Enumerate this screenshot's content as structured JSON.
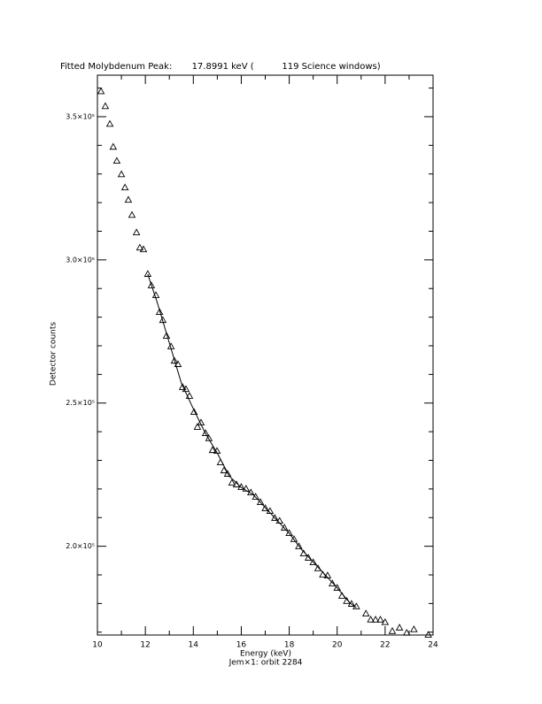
{
  "chart_data": {
    "type": "scatter",
    "title": "Fitted Molybdenum Peak:       17.8991 keV (          119 Science windows)",
    "x_label": "Energy (keV)",
    "subtitle": "Jem×1: orbit 2284",
    "y_label": "Detector counts",
    "marker": "triangle",
    "color": "#000000",
    "xlim": [
      10,
      24
    ],
    "xticks": [
      10,
      12,
      14,
      16,
      18,
      20,
      22,
      24
    ],
    "xticks_minor": [
      11,
      13,
      15,
      17,
      19,
      21,
      23
    ],
    "ylim": [
      169000,
      364500
    ],
    "yticks": [
      {
        "value": 200000,
        "label": "2.0×10⁵"
      },
      {
        "value": 250000,
        "label": "2.5×10⁵"
      },
      {
        "value": 300000,
        "label": "3.0×10⁵"
      },
      {
        "value": 350000,
        "label": "3.5×10⁵"
      }
    ],
    "yticks_minor": [
      170000,
      180000,
      190000,
      210000,
      220000,
      230000,
      240000,
      260000,
      270000,
      280000,
      290000,
      310000,
      320000,
      330000,
      340000,
      360000
    ],
    "x": [
      10.15,
      10.33,
      10.52,
      10.66,
      10.81,
      11.0,
      11.15,
      11.29,
      11.44,
      11.63,
      11.77,
      11.92,
      12.1,
      12.25,
      12.44,
      12.59,
      12.73,
      12.88,
      13.07,
      13.21,
      13.36,
      13.55,
      13.69,
      13.84,
      14.03,
      14.17,
      14.32,
      14.51,
      14.65,
      14.8,
      14.99,
      15.13,
      15.28,
      15.43,
      15.61,
      15.8,
      16.0,
      16.2,
      16.4,
      16.6,
      16.8,
      17.0,
      17.2,
      17.4,
      17.6,
      17.8,
      18.0,
      18.2,
      18.4,
      18.6,
      18.8,
      19.0,
      19.2,
      19.4,
      19.6,
      19.8,
      20.0,
      20.2,
      20.4,
      20.6,
      20.8,
      21.2,
      21.4,
      21.6,
      21.8,
      22.0,
      22.3,
      22.6,
      22.9,
      23.2,
      23.8
    ],
    "values": [
      358900,
      353700,
      347500,
      339500,
      334600,
      329900,
      325300,
      321000,
      315700,
      309600,
      304300,
      303700,
      295100,
      291100,
      287700,
      281800,
      279000,
      273500,
      269800,
      264800,
      263600,
      255600,
      254900,
      252500,
      246900,
      241700,
      243200,
      239500,
      237700,
      233600,
      233300,
      229300,
      226500,
      225300,
      222200,
      221600,
      220700,
      220100,
      218800,
      217300,
      215400,
      213300,
      212300,
      209900,
      208900,
      206500,
      204600,
      202500,
      200000,
      197500,
      196000,
      194400,
      192300,
      190100,
      189800,
      187000,
      185500,
      182700,
      180900,
      179900,
      179000,
      176500,
      174400,
      174400,
      174400,
      173500,
      170400,
      171600,
      169800,
      171000,
      169100
    ],
    "fit": {
      "x": [
        12.1,
        12.5,
        13,
        13.5,
        14,
        14.5,
        15,
        15.5,
        16,
        16.5,
        17,
        17.5,
        18,
        18.5,
        19,
        19.5,
        20,
        20.5,
        20.8
      ],
      "values": [
        295000,
        285000,
        271000,
        257000,
        248000,
        239500,
        232500,
        224500,
        220500,
        218000,
        213500,
        209000,
        204500,
        199000,
        194500,
        190000,
        185500,
        180500,
        178500
      ]
    }
  }
}
